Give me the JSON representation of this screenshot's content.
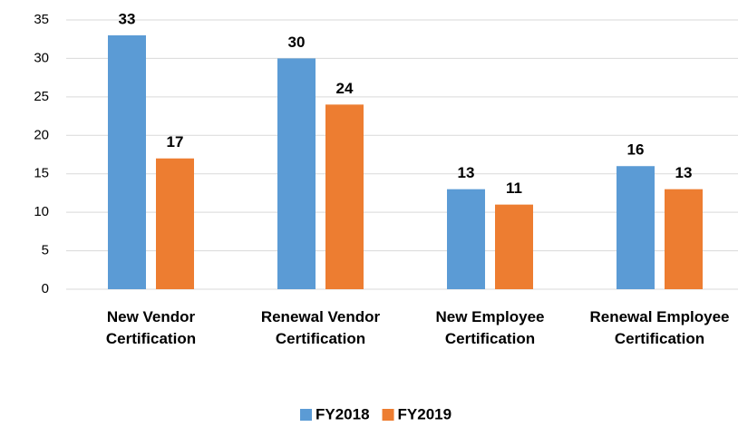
{
  "chart_data": {
    "type": "bar",
    "categories": [
      "New Vendor Certification",
      "Renewal Vendor Certification",
      "New Employee Certification",
      "Renewal Employee Certification"
    ],
    "series": [
      {
        "name": "FY2018",
        "color": "#5b9bd5",
        "values": [
          33,
          30,
          13,
          16
        ]
      },
      {
        "name": "FY2019",
        "color": "#ed7d31",
        "values": [
          17,
          24,
          11,
          13
        ]
      }
    ],
    "ylim": [
      0,
      35
    ],
    "yticks": [
      0,
      5,
      10,
      15,
      20,
      25,
      30,
      35
    ],
    "grid": true,
    "legend": "bottom"
  }
}
